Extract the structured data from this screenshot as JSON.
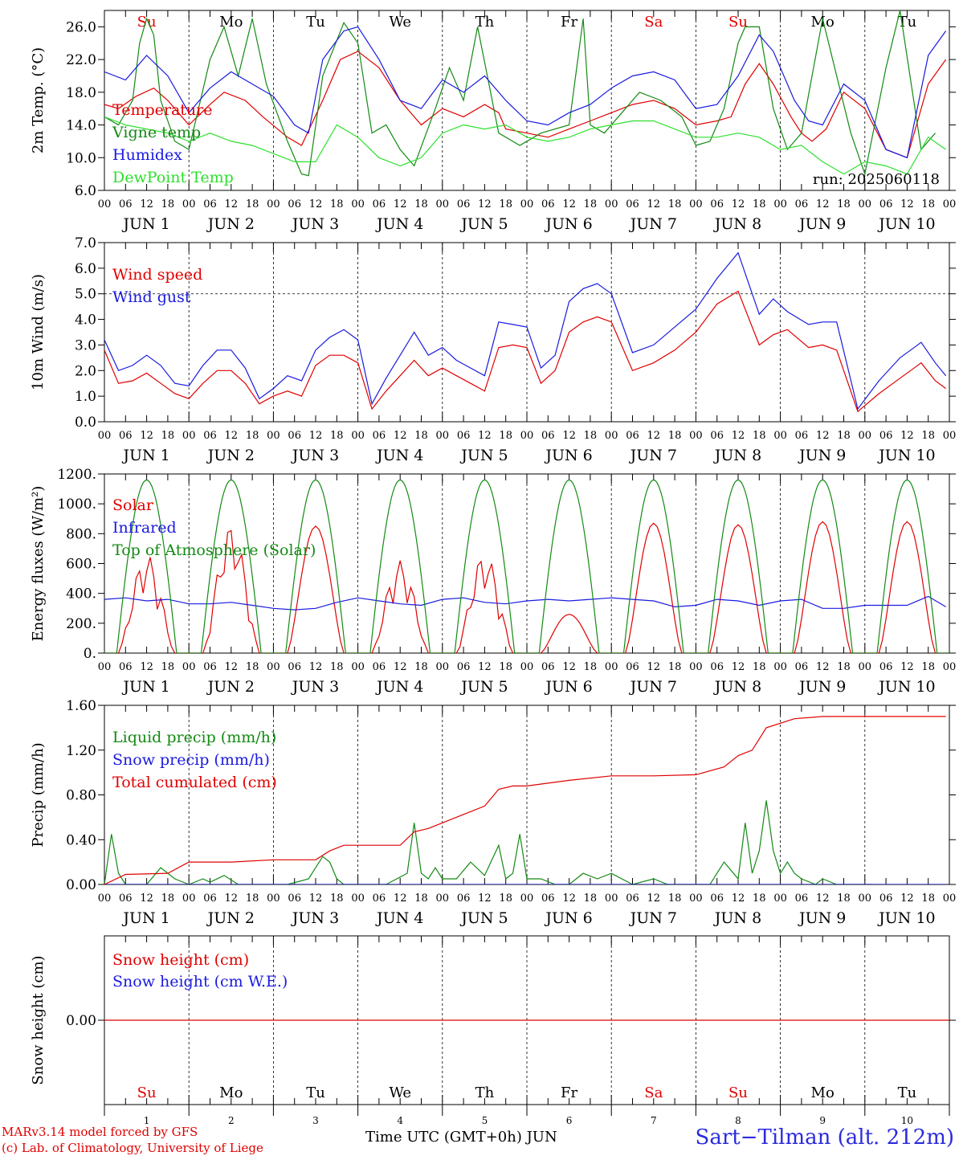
{
  "footer": {
    "credit_model": "MARv3.14 model forced by GFS",
    "credit_lab": "(c) Lab. of Climatology, University of Liege",
    "xaxis_title": "Time UTC (GMT+0h) JUN",
    "station": "Sart−Tilman (alt. 212m)"
  },
  "run_label": "run: 2025060118",
  "days": {
    "weekdays": [
      "Su",
      "Mo",
      "Tu",
      "We",
      "Th",
      "Fr",
      "Sa",
      "Su",
      "Mo",
      "Tu"
    ],
    "weekend_flags": [
      true,
      false,
      false,
      false,
      false,
      false,
      true,
      true,
      false,
      false
    ],
    "day_numbers": [
      "1",
      "2",
      "3",
      "4",
      "5",
      "6",
      "7",
      "8",
      "9",
      "10"
    ],
    "date_labels": [
      "JUN 1",
      "JUN 2",
      "JUN 3",
      "JUN 4",
      "JUN 5",
      "JUN 6",
      "JUN 7",
      "JUN 8",
      "JUN 9",
      "JUN 10"
    ],
    "hour_ticks": [
      "00",
      "06",
      "12",
      "18"
    ],
    "final_tick": "00"
  },
  "colors": {
    "red": "#e00000",
    "dark_green": "#138a13",
    "blue": "#1a1ae0",
    "light_green": "#2de02d",
    "weekend": "#e00000",
    "weekday": "#000000"
  },
  "chart_data": [
    {
      "type": "line",
      "ylabel": "2m Temp. (°C)",
      "ylim": [
        6,
        28
      ],
      "yticks": [
        "6.0",
        "10.0",
        "14.0",
        "18.0",
        "22.0",
        "26.0"
      ],
      "legend_placement": "left",
      "x_unit": "hours from 2025-06-01 00 UTC",
      "series": [
        {
          "name": "Temperature",
          "color": "red",
          "x": [
            0,
            4,
            9,
            14,
            18,
            24,
            30,
            34,
            40,
            45,
            52,
            56,
            62,
            67,
            72,
            78,
            84,
            88,
            90,
            96,
            102,
            108,
            112,
            114,
            120,
            126,
            132,
            138,
            144,
            150,
            156,
            162,
            168,
            174,
            178,
            182,
            186,
            190,
            195,
            198,
            201,
            205,
            210,
            216,
            222,
            228,
            234,
            239
          ],
          "y": [
            16.5,
            16.0,
            17.5,
            18.5,
            17.0,
            14.0,
            16.5,
            18.0,
            17.0,
            15.0,
            12.5,
            11.5,
            17.0,
            22.0,
            23.0,
            21.0,
            17.0,
            15.0,
            14.0,
            16.0,
            15.0,
            16.5,
            15.5,
            13.5,
            13.0,
            12.5,
            13.5,
            14.5,
            15.5,
            16.5,
            17.0,
            16.0,
            14.0,
            14.5,
            15.0,
            19.0,
            21.5,
            19.0,
            15.0,
            13.0,
            12.0,
            13.5,
            18.0,
            16.0,
            11.0,
            10.0,
            19.0,
            22.0
          ]
        },
        {
          "name": "Vigne temp",
          "color": "dark_green",
          "x": [
            0,
            4,
            8,
            10,
            12,
            14,
            16,
            20,
            24,
            30,
            34,
            38,
            42,
            46,
            52,
            56,
            58,
            62,
            68,
            72,
            76,
            80,
            84,
            88,
            94,
            98,
            102,
            106,
            112,
            118,
            124,
            132,
            136,
            138,
            142,
            148,
            152,
            158,
            164,
            168,
            172,
            176,
            180,
            182,
            186,
            190,
            194,
            198,
            204,
            208,
            212,
            216,
            222,
            226,
            232,
            236
          ],
          "y": [
            15.0,
            14.0,
            17.0,
            24.0,
            27.0,
            25.0,
            17.0,
            12.0,
            11.0,
            22.0,
            26.0,
            20.0,
            27.0,
            19.0,
            12.0,
            8.0,
            7.8,
            20.0,
            26.5,
            24.0,
            13.0,
            14.0,
            11.0,
            9.0,
            16.0,
            21.0,
            17.0,
            26.0,
            13.0,
            11.5,
            13.0,
            14.0,
            27.0,
            14.0,
            13.0,
            16.0,
            18.0,
            17.0,
            15.0,
            11.5,
            12.0,
            16.0,
            24.0,
            26.0,
            26.0,
            16.0,
            11.0,
            13.0,
            27.0,
            20.0,
            13.0,
            8.0,
            21.0,
            28.0,
            11.0,
            13.0
          ]
        },
        {
          "name": "Humidex",
          "color": "blue",
          "x": [
            0,
            6,
            12,
            18,
            24,
            30,
            36,
            42,
            48,
            54,
            58,
            62,
            68,
            72,
            78,
            84,
            90,
            96,
            102,
            108,
            114,
            120,
            126,
            132,
            138,
            144,
            150,
            156,
            162,
            168,
            174,
            180,
            186,
            190,
            196,
            200,
            204,
            210,
            216,
            222,
            228,
            234,
            239
          ],
          "y": [
            20.5,
            19.5,
            22.5,
            20.0,
            15.5,
            18.5,
            20.5,
            19.0,
            17.5,
            14.0,
            13.0,
            22.0,
            25.5,
            26.0,
            22.0,
            17.0,
            16.0,
            19.5,
            18.0,
            20.0,
            17.0,
            14.5,
            14.0,
            15.5,
            16.5,
            18.5,
            20.0,
            20.5,
            19.5,
            16.0,
            16.5,
            20.0,
            25.0,
            23.0,
            17.0,
            14.5,
            14.0,
            19.0,
            17.0,
            11.0,
            10.0,
            22.5,
            25.5
          ]
        },
        {
          "name": "DewPoint Temp",
          "color": "light_green",
          "x": [
            0,
            6,
            12,
            18,
            24,
            30,
            36,
            42,
            48,
            54,
            60,
            66,
            72,
            78,
            84,
            90,
            96,
            102,
            108,
            114,
            120,
            126,
            132,
            138,
            144,
            150,
            156,
            162,
            168,
            174,
            180,
            186,
            192,
            198,
            204,
            210,
            216,
            222,
            228,
            234,
            239
          ],
          "y": [
            15.0,
            14.0,
            13.5,
            13.0,
            12.0,
            13.0,
            12.0,
            11.5,
            10.5,
            9.5,
            9.5,
            14.0,
            12.5,
            10.0,
            9.0,
            10.0,
            13.0,
            14.0,
            13.5,
            14.0,
            12.5,
            12.0,
            12.5,
            13.5,
            14.0,
            14.5,
            14.5,
            13.5,
            12.5,
            12.5,
            13.0,
            12.5,
            11.0,
            11.5,
            9.5,
            8.0,
            9.5,
            9.0,
            8.0,
            12.5,
            11.0
          ]
        }
      ]
    },
    {
      "type": "line",
      "ylabel": "10m Wind (m/s)",
      "ylim": [
        0,
        7
      ],
      "yticks": [
        "0.0",
        "1.0",
        "2.0",
        "3.0",
        "4.0",
        "5.0",
        "6.0",
        "7.0"
      ],
      "reference_line": 5.0,
      "legend_placement": "left",
      "x_unit": "hours from 2025-06-01 00 UTC",
      "series": [
        {
          "name": "Wind speed",
          "color": "red",
          "x": [
            0,
            4,
            8,
            12,
            16,
            20,
            24,
            28,
            32,
            36,
            40,
            44,
            48,
            52,
            56,
            60,
            64,
            68,
            72,
            76,
            80,
            84,
            88,
            92,
            96,
            100,
            104,
            108,
            112,
            116,
            120,
            124,
            128,
            132,
            136,
            140,
            144,
            150,
            156,
            162,
            168,
            174,
            180,
            186,
            190,
            194,
            200,
            204,
            208,
            214,
            220,
            226,
            232,
            236,
            239
          ],
          "y": [
            2.8,
            1.5,
            1.6,
            1.9,
            1.5,
            1.1,
            0.9,
            1.5,
            2.0,
            2.0,
            1.5,
            0.7,
            1.0,
            1.2,
            1.0,
            2.2,
            2.6,
            2.6,
            2.3,
            0.5,
            1.2,
            1.8,
            2.4,
            1.8,
            2.1,
            1.8,
            1.5,
            1.2,
            2.9,
            3.0,
            2.9,
            1.5,
            2.0,
            3.5,
            3.9,
            4.1,
            3.9,
            2.0,
            2.3,
            2.8,
            3.5,
            4.6,
            5.1,
            3.0,
            3.4,
            3.6,
            2.9,
            3.0,
            2.8,
            0.4,
            1.1,
            1.7,
            2.3,
            1.6,
            1.3
          ]
        },
        {
          "name": "Wind gust",
          "color": "blue",
          "x": [
            0,
            4,
            8,
            12,
            16,
            20,
            24,
            28,
            32,
            36,
            40,
            44,
            48,
            52,
            56,
            60,
            64,
            68,
            72,
            76,
            80,
            84,
            88,
            92,
            96,
            100,
            104,
            108,
            112,
            116,
            120,
            124,
            128,
            132,
            136,
            140,
            144,
            150,
            156,
            162,
            168,
            174,
            180,
            186,
            190,
            194,
            200,
            204,
            208,
            214,
            220,
            226,
            232,
            236,
            239
          ],
          "y": [
            3.2,
            2.0,
            2.2,
            2.6,
            2.2,
            1.5,
            1.4,
            2.2,
            2.8,
            2.8,
            2.1,
            0.9,
            1.3,
            1.8,
            1.6,
            2.8,
            3.3,
            3.6,
            3.2,
            0.7,
            1.7,
            2.6,
            3.5,
            2.6,
            2.9,
            2.4,
            2.1,
            1.8,
            3.9,
            3.8,
            3.7,
            2.1,
            2.6,
            4.7,
            5.2,
            5.4,
            5.0,
            2.7,
            3.0,
            3.7,
            4.4,
            5.6,
            6.6,
            4.2,
            4.8,
            4.3,
            3.8,
            3.9,
            3.9,
            0.5,
            1.6,
            2.5,
            3.1,
            2.3,
            1.8
          ]
        }
      ]
    },
    {
      "type": "line",
      "ylabel": "Energy fluxes (W/m²)",
      "ylim": [
        0,
        1200
      ],
      "yticks": [
        "0.",
        "200.",
        "400.",
        "600.",
        "800.",
        "1000.",
        "1200."
      ],
      "legend_placement": "left",
      "x_unit": "hours from 2025-06-01 00 UTC",
      "series": [
        {
          "name": "Solar",
          "color": "red",
          "day_peaks": [
            660,
            860,
            850,
            620,
            670,
            260,
            870,
            860,
            880,
            880
          ]
        },
        {
          "name": "Infrared",
          "color": "blue",
          "x": [
            0,
            6,
            12,
            18,
            24,
            30,
            36,
            42,
            48,
            54,
            60,
            66,
            72,
            78,
            84,
            90,
            96,
            102,
            108,
            114,
            120,
            126,
            132,
            138,
            144,
            150,
            156,
            162,
            168,
            174,
            180,
            186,
            192,
            198,
            204,
            210,
            216,
            222,
            228,
            234,
            239
          ],
          "y": [
            360,
            370,
            350,
            360,
            330,
            330,
            340,
            320,
            300,
            290,
            300,
            340,
            370,
            350,
            330,
            320,
            360,
            370,
            340,
            330,
            350,
            360,
            350,
            360,
            370,
            360,
            350,
            310,
            320,
            360,
            350,
            320,
            350,
            360,
            300,
            300,
            320,
            320,
            320,
            380,
            310
          ]
        },
        {
          "name": "Top of Atmosphere (Solar)",
          "color": "dark_green",
          "peak": 1160
        }
      ]
    },
    {
      "type": "line",
      "ylabel": "Precip (mm/h)",
      "ylim": [
        0,
        1.6
      ],
      "yticks": [
        "0.00",
        "0.40",
        "0.80",
        "1.20",
        "1.60"
      ],
      "legend_placement": "left",
      "x_unit": "hours from 2025-06-01 00 UTC",
      "series": [
        {
          "name": "Liquid precip (mm/h)",
          "color": "dark_green",
          "x": [
            0,
            2,
            4,
            6,
            8,
            12,
            16,
            18,
            20,
            24,
            28,
            30,
            34,
            38,
            46,
            52,
            58,
            62,
            64,
            66,
            68,
            70,
            80,
            86,
            88,
            90,
            92,
            94,
            96,
            100,
            104,
            108,
            112,
            114,
            116,
            118,
            120,
            124,
            128,
            132,
            136,
            140,
            144,
            150,
            156,
            160,
            164,
            168,
            172,
            176,
            180,
            182,
            184,
            186,
            188,
            190,
            192,
            194,
            196,
            198,
            202,
            204,
            208,
            212,
            218
          ],
          "y": [
            0,
            0.45,
            0.1,
            0,
            0,
            0,
            0.15,
            0.1,
            0.05,
            0,
            0.05,
            0.02,
            0.08,
            0,
            0,
            0,
            0.05,
            0.25,
            0.2,
            0.05,
            0,
            0,
            0,
            0.1,
            0.55,
            0.1,
            0.05,
            0.15,
            0.05,
            0.05,
            0.2,
            0.08,
            0.35,
            0.05,
            0.1,
            0.45,
            0.05,
            0.05,
            0,
            0,
            0.1,
            0.05,
            0.1,
            0,
            0.05,
            0,
            0,
            0,
            0,
            0.2,
            0.05,
            0.55,
            0.1,
            0.3,
            0.75,
            0.3,
            0.1,
            0.2,
            0.1,
            0.05,
            0,
            0.05,
            0,
            0,
            0
          ]
        },
        {
          "name": "Snow precip (mm/h)",
          "color": "blue",
          "x": [
            0,
            239
          ],
          "y": [
            0,
            0
          ]
        },
        {
          "name": "Total cumulated (cm)",
          "color": "red",
          "x": [
            0,
            6,
            18,
            24,
            36,
            48,
            60,
            64,
            68,
            84,
            88,
            92,
            96,
            108,
            112,
            116,
            120,
            132,
            144,
            156,
            168,
            176,
            180,
            184,
            188,
            196,
            204,
            216,
            239
          ],
          "y": [
            0,
            0.09,
            0.1,
            0.2,
            0.2,
            0.22,
            0.22,
            0.3,
            0.35,
            0.35,
            0.47,
            0.5,
            0.55,
            0.7,
            0.85,
            0.88,
            0.88,
            0.93,
            0.97,
            0.97,
            0.98,
            1.05,
            1.15,
            1.2,
            1.4,
            1.48,
            1.5,
            1.5,
            1.5
          ]
        }
      ]
    },
    {
      "type": "line",
      "ylabel": "Snow height (cm)",
      "ylim": [
        -1,
        1
      ],
      "yticks": [
        "0.00"
      ],
      "legend_placement": "left",
      "x_unit": "hours from 2025-06-01 00 UTC",
      "series": [
        {
          "name": "Snow height (cm)",
          "color": "red",
          "x": [
            0,
            240
          ],
          "y": [
            0,
            0
          ]
        },
        {
          "name": "Snow height (cm W.E.)",
          "color": "blue"
        }
      ]
    }
  ]
}
